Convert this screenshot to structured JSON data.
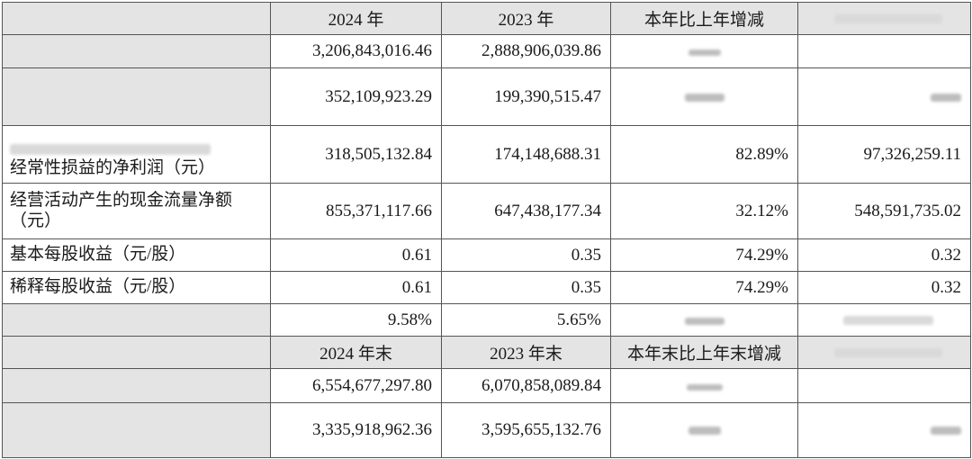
{
  "headers1": {
    "col_2024": "2024 年",
    "col_2023": "2023 年",
    "col_change": "本年比上年增减"
  },
  "rows1": [
    {
      "label": "",
      "v2024": "3,206,843,016.46",
      "v2023": "2,888,906,039.86",
      "change": "",
      "v2022": ""
    },
    {
      "label": "",
      "v2024": "352,109,923.29",
      "v2023": "199,390,515.47",
      "change": "",
      "v2022": ""
    },
    {
      "label": "经常性损益的净利润（元）",
      "v2024": "318,505,132.84",
      "v2023": "174,148,688.31",
      "change": "82.89%",
      "v2022": "97,326,259.11"
    },
    {
      "label": "经营活动产生的现金流量净额（元）",
      "v2024": "855,371,117.66",
      "v2023": "647,438,177.34",
      "change": "32.12%",
      "v2022": "548,591,735.02"
    },
    {
      "label": "基本每股收益（元/股）",
      "v2024": "0.61",
      "v2023": "0.35",
      "change": "74.29%",
      "v2022": "0.32"
    },
    {
      "label": "稀释每股收益（元/股）",
      "v2024": "0.61",
      "v2023": "0.35",
      "change": "74.29%",
      "v2022": "0.32"
    },
    {
      "label": "",
      "v2024": "9.58%",
      "v2023": "5.65%",
      "change": "",
      "v2022": ""
    }
  ],
  "headers2": {
    "col_2024": "2024 年末",
    "col_2023": "2023 年末",
    "col_change": "本年末比上年末增减"
  },
  "rows2": [
    {
      "label": "",
      "v2024": "6,554,677,297.80",
      "v2023": "6,070,858,089.84",
      "change": "",
      "v2022": ""
    },
    {
      "label": "",
      "v2024": "3,335,918,962.36",
      "v2023": "3,595,655,132.76",
      "change": "",
      "v2022": ""
    }
  ]
}
